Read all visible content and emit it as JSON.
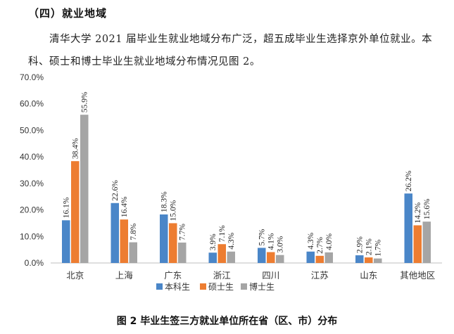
{
  "section": {
    "heading": "（四）就业地域"
  },
  "body_text": "清华大学 2021 届毕业生就业地域分布广泛，超五成毕业生选择京外单位就业。本科、硕士和博士毕业生就业地域分布情况见图 2。",
  "colors": {
    "bachelor": "#4A86C8",
    "master": "#ED7D31",
    "doctor": "#A5A5A5"
  },
  "chart_data": {
    "type": "bar",
    "title": "图 2 毕业生签三方就业单位所在省（区、市）分布",
    "categories": [
      "北京",
      "上海",
      "广东",
      "浙江",
      "四川",
      "江苏",
      "山东",
      "其他地区"
    ],
    "series": [
      {
        "name": "本科生",
        "values": [
          16.1,
          22.6,
          18.3,
          3.9,
          5.7,
          4.3,
          2.9,
          26.2
        ],
        "labels": [
          "16.1%",
          "22.6%",
          "18.3%",
          "3.9%",
          "5.7%",
          "4.3%",
          "2.9%",
          "26.2%"
        ]
      },
      {
        "name": "硕士生",
        "values": [
          38.4,
          16.4,
          15.0,
          7.1,
          4.1,
          2.7,
          2.1,
          14.2
        ],
        "labels": [
          "38.4%",
          "16.4%",
          "15.0%",
          "7.1%",
          "4.1%",
          "2.7%",
          "2.1%",
          "14.2%"
        ]
      },
      {
        "name": "博士生",
        "values": [
          55.9,
          7.8,
          7.7,
          4.3,
          3.0,
          4.0,
          1.7,
          15.6
        ],
        "labels": [
          "55.9%",
          "7.8%",
          "7.7%",
          "4.3%",
          "3.0%",
          "4.0%",
          "1.7%",
          "15.6%"
        ]
      }
    ],
    "yticks": [
      "0.0%",
      "10.0%",
      "20.0%",
      "30.0%",
      "40.0%",
      "50.0%",
      "60.0%",
      "70.0%"
    ],
    "ylim": [
      0,
      70
    ],
    "grid": false,
    "legend": "bottom-center"
  }
}
